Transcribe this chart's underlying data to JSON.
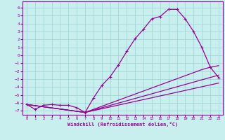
{
  "xlabel": "Windchill (Refroidissement éolien,°C)",
  "xlim": [
    -0.5,
    23.5
  ],
  "ylim": [
    -7.5,
    6.8
  ],
  "yticks": [
    6,
    5,
    4,
    3,
    2,
    1,
    0,
    -1,
    -2,
    -3,
    -4,
    -5,
    -6,
    -7
  ],
  "xticks": [
    0,
    1,
    2,
    3,
    4,
    5,
    6,
    7,
    8,
    9,
    10,
    11,
    12,
    13,
    14,
    15,
    16,
    17,
    18,
    19,
    20,
    21,
    22,
    23
  ],
  "bg_color": "#c8eeee",
  "grid_color": "#a0d8d8",
  "line_color": "#990099",
  "lines": [
    {
      "x": [
        0,
        1,
        2,
        3,
        4,
        5,
        6,
        7,
        8,
        9,
        10,
        11,
        12,
        13,
        14,
        15,
        16,
        17,
        18,
        19,
        20,
        21,
        22,
        23
      ],
      "y": [
        -6.2,
        -6.8,
        -6.3,
        -6.2,
        -6.3,
        -6.3,
        -6.6,
        -7.2,
        -5.4,
        -3.8,
        -2.7,
        -1.2,
        0.5,
        2.1,
        3.3,
        4.6,
        4.9,
        5.8,
        5.8,
        4.6,
        3.0,
        1.0,
        -1.5,
        -2.8
      ],
      "marker": true
    },
    {
      "x": [
        0,
        7,
        23
      ],
      "y": [
        -6.2,
        -7.2,
        -3.5
      ],
      "marker": false
    },
    {
      "x": [
        0,
        7,
        23
      ],
      "y": [
        -6.2,
        -7.2,
        -2.5
      ],
      "marker": false
    },
    {
      "x": [
        0,
        7,
        21,
        22,
        23
      ],
      "y": [
        -6.2,
        -7.2,
        -1.8,
        -1.5,
        -1.3
      ],
      "marker": false
    }
  ]
}
